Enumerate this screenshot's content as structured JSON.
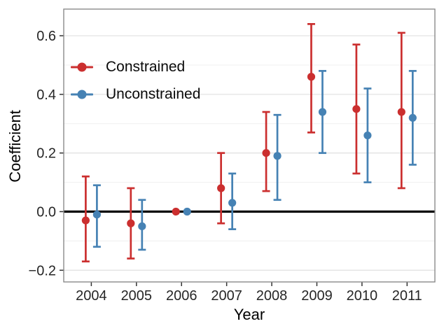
{
  "chart_data": {
    "type": "pointrange",
    "title": "",
    "xlabel": "Year",
    "ylabel": "Coefficient",
    "categories": [
      "2004",
      "2005",
      "2006",
      "2007",
      "2008",
      "2009",
      "2010",
      "2011"
    ],
    "yticks": [
      {
        "label": "−0.2",
        "value": -0.2
      },
      {
        "label": "0.0",
        "value": 0.0
      },
      {
        "label": "0.2",
        "value": 0.2
      },
      {
        "label": "0.4",
        "value": 0.4
      },
      {
        "label": "0.6",
        "value": 0.6
      }
    ],
    "minor_gridlines": [
      -0.1,
      0.1,
      0.3,
      0.5
    ],
    "ylim": [
      -0.235,
      0.695
    ],
    "reference_line": 0.0,
    "grid": "horizontal major+minor",
    "legend_position": "inside-top-left",
    "series": [
      {
        "name": "Constrained",
        "color": "#cb2f2f",
        "points": [
          {
            "x": "2004",
            "estimate": -0.03,
            "lo": -0.17,
            "hi": 0.12
          },
          {
            "x": "2005",
            "estimate": -0.04,
            "lo": -0.16,
            "hi": 0.08
          },
          {
            "x": "2006",
            "estimate": 0.0,
            "lo": null,
            "hi": null
          },
          {
            "x": "2007",
            "estimate": 0.08,
            "lo": -0.04,
            "hi": 0.2
          },
          {
            "x": "2008",
            "estimate": 0.2,
            "lo": 0.07,
            "hi": 0.34
          },
          {
            "x": "2009",
            "estimate": 0.46,
            "lo": 0.27,
            "hi": 0.64
          },
          {
            "x": "2010",
            "estimate": 0.35,
            "lo": 0.13,
            "hi": 0.57
          },
          {
            "x": "2011",
            "estimate": 0.34,
            "lo": 0.08,
            "hi": 0.61
          }
        ]
      },
      {
        "name": "Unconstrained",
        "color": "#4682b4",
        "points": [
          {
            "x": "2004",
            "estimate": -0.01,
            "lo": -0.12,
            "hi": 0.09
          },
          {
            "x": "2005",
            "estimate": -0.05,
            "lo": -0.13,
            "hi": 0.04
          },
          {
            "x": "2006",
            "estimate": 0.0,
            "lo": null,
            "hi": null
          },
          {
            "x": "2007",
            "estimate": 0.03,
            "lo": -0.06,
            "hi": 0.13
          },
          {
            "x": "2008",
            "estimate": 0.19,
            "lo": 0.04,
            "hi": 0.33
          },
          {
            "x": "2009",
            "estimate": 0.34,
            "lo": 0.2,
            "hi": 0.48
          },
          {
            "x": "2010",
            "estimate": 0.26,
            "lo": 0.1,
            "hi": 0.42
          },
          {
            "x": "2011",
            "estimate": 0.32,
            "lo": 0.16,
            "hi": 0.48
          }
        ]
      }
    ]
  }
}
